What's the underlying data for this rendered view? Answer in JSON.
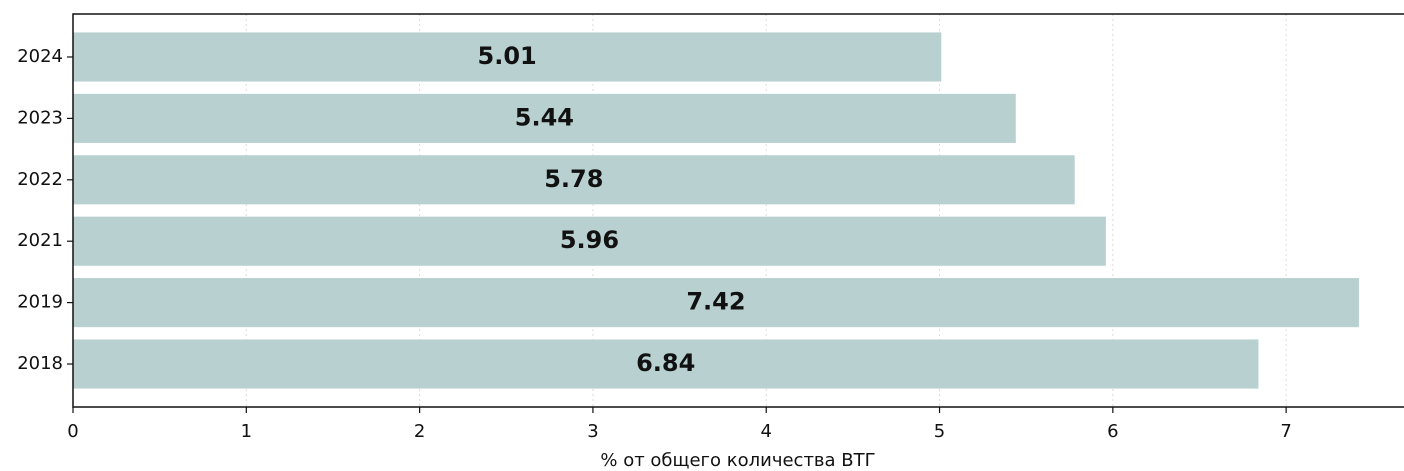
{
  "chart_data": {
    "type": "barh",
    "xlabel": "% от общего количества ВТГ",
    "categories": [
      "2024",
      "2023",
      "2022",
      "2021",
      "2019",
      "2018"
    ],
    "values": [
      5.01,
      5.44,
      5.78,
      5.96,
      7.42,
      6.84
    ],
    "color": "#b8d1d0",
    "xlim": [
      0,
      7.68
    ],
    "xticks": [
      0,
      1,
      2,
      3,
      4,
      5,
      6,
      7
    ],
    "grid": true
  }
}
